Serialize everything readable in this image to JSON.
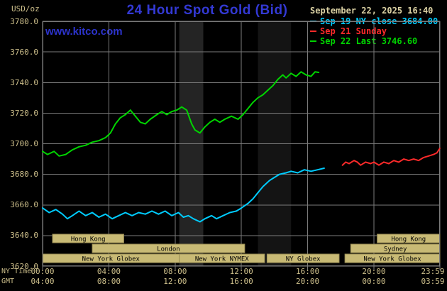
{
  "header": {
    "unit_label": "USD/oz",
    "title": "24 Hour Spot Gold (Bid)",
    "watermark": "www.kitco.com",
    "timestamp": "September 22, 2025 16:40"
  },
  "colors": {
    "background": "#000000",
    "grid": "#7b7b7b",
    "axis_text": "#cdbf8b",
    "title_blue": "#3339d4",
    "watermark_blue": "#2c33cc",
    "timestamp_text": "#dcd2a4",
    "session_fill": "#c8ba75",
    "session_border": "#9b8f55",
    "session_text": "#000000"
  },
  "chart_data": {
    "type": "line",
    "title": "24 Hour Spot Gold (Bid)",
    "ylabel": "USD/oz",
    "ylim": [
      3620,
      3780
    ],
    "x_range_hours": [
      0,
      23.983
    ],
    "grid": true,
    "legend_position": "top-right",
    "x_axis_rows": {
      "ny": "NY Time",
      "gmt": "GMT"
    },
    "y_ticks": [
      {
        "value": 3780,
        "label": "3780.0"
      },
      {
        "value": 3760,
        "label": "3760.0"
      },
      {
        "value": 3740,
        "label": "3740.0"
      },
      {
        "value": 3720,
        "label": "3720.0"
      },
      {
        "value": 3700,
        "label": "3700.0"
      },
      {
        "value": 3680,
        "label": "3680.0"
      },
      {
        "value": 3660,
        "label": "3660.0"
      },
      {
        "value": 3640,
        "label": "3640.0"
      },
      {
        "value": 3620,
        "label": "3620.0"
      }
    ],
    "x_ticks": [
      {
        "hour": 0,
        "ny": "00:00",
        "gmt": "04:00"
      },
      {
        "hour": 4,
        "ny": "04:00",
        "gmt": "08:00"
      },
      {
        "hour": 8,
        "ny": "08:00",
        "gmt": "12:00"
      },
      {
        "hour": 12,
        "ny": "12:00",
        "gmt": "16:00"
      },
      {
        "hour": 16,
        "ny": "16:00",
        "gmt": "20:00"
      },
      {
        "hour": 20,
        "ny": "20:00",
        "gmt": "00:00"
      },
      {
        "hour": 23.983,
        "ny": "23:59",
        "gmt": "03:59"
      }
    ],
    "shaded_bands": [
      {
        "start_hour": 8.25,
        "end_hour": 9.7,
        "color": "#242424"
      },
      {
        "start_hour": 13.0,
        "end_hour": 15.0,
        "color": "#141414"
      }
    ],
    "series": [
      {
        "name": "Sep 19 NY close 3684.00",
        "color": "#00ccff",
        "points": [
          [
            0,
            3658
          ],
          [
            0.4,
            3655
          ],
          [
            0.8,
            3657
          ],
          [
            1.2,
            3654
          ],
          [
            1.5,
            3651
          ],
          [
            1.8,
            3653
          ],
          [
            2.2,
            3656
          ],
          [
            2.6,
            3653
          ],
          [
            3,
            3655
          ],
          [
            3.4,
            3652
          ],
          [
            3.8,
            3654
          ],
          [
            4.2,
            3651
          ],
          [
            4.6,
            3653
          ],
          [
            5,
            3655
          ],
          [
            5.4,
            3653
          ],
          [
            5.8,
            3655
          ],
          [
            6.2,
            3654
          ],
          [
            6.6,
            3656
          ],
          [
            7,
            3654
          ],
          [
            7.4,
            3656
          ],
          [
            7.8,
            3653
          ],
          [
            8.2,
            3655
          ],
          [
            8.5,
            3652
          ],
          [
            8.8,
            3653
          ],
          [
            9.1,
            3651
          ],
          [
            9.5,
            3649
          ],
          [
            9.8,
            3651
          ],
          [
            10.2,
            3653
          ],
          [
            10.5,
            3651
          ],
          [
            10.9,
            3653
          ],
          [
            11.3,
            3655
          ],
          [
            11.7,
            3656
          ],
          [
            12,
            3658
          ],
          [
            12.4,
            3661
          ],
          [
            12.7,
            3664
          ],
          [
            13,
            3668
          ],
          [
            13.3,
            3672
          ],
          [
            13.7,
            3676
          ],
          [
            14,
            3678
          ],
          [
            14.3,
            3680
          ],
          [
            14.7,
            3681
          ],
          [
            15,
            3682
          ],
          [
            15.4,
            3681
          ],
          [
            15.8,
            3683
          ],
          [
            16.2,
            3682
          ],
          [
            16.6,
            3683
          ],
          [
            17,
            3684
          ]
        ]
      },
      {
        "name": "Sep 21 Sunday",
        "color": "#ff2a2a",
        "points": [
          [
            18.1,
            3686
          ],
          [
            18.3,
            3688
          ],
          [
            18.5,
            3687
          ],
          [
            18.8,
            3689
          ],
          [
            19,
            3688
          ],
          [
            19.2,
            3686
          ],
          [
            19.5,
            3688
          ],
          [
            19.8,
            3687
          ],
          [
            20,
            3688
          ],
          [
            20.3,
            3686
          ],
          [
            20.6,
            3688
          ],
          [
            20.9,
            3687
          ],
          [
            21.2,
            3689
          ],
          [
            21.5,
            3688
          ],
          [
            21.8,
            3690
          ],
          [
            22.1,
            3689
          ],
          [
            22.4,
            3690
          ],
          [
            22.7,
            3689
          ],
          [
            23,
            3691
          ],
          [
            23.3,
            3692
          ],
          [
            23.6,
            3693
          ],
          [
            23.8,
            3694
          ],
          [
            23.98,
            3697
          ]
        ]
      },
      {
        "name": "Sep 22 Last 3746.60",
        "color": "#00d400",
        "points": [
          [
            0,
            3695
          ],
          [
            0.3,
            3693
          ],
          [
            0.7,
            3695
          ],
          [
            1,
            3692
          ],
          [
            1.4,
            3693
          ],
          [
            1.8,
            3696
          ],
          [
            2.2,
            3698
          ],
          [
            2.6,
            3699
          ],
          [
            3,
            3701
          ],
          [
            3.4,
            3702
          ],
          [
            3.8,
            3704
          ],
          [
            4.1,
            3707
          ],
          [
            4.4,
            3713
          ],
          [
            4.7,
            3717
          ],
          [
            5,
            3719
          ],
          [
            5.3,
            3722
          ],
          [
            5.6,
            3718
          ],
          [
            5.9,
            3714
          ],
          [
            6.2,
            3713
          ],
          [
            6.5,
            3716
          ],
          [
            6.9,
            3719
          ],
          [
            7.2,
            3721
          ],
          [
            7.5,
            3719
          ],
          [
            7.8,
            3721
          ],
          [
            8.1,
            3722
          ],
          [
            8.4,
            3724
          ],
          [
            8.7,
            3722
          ],
          [
            9,
            3713
          ],
          [
            9.2,
            3709
          ],
          [
            9.5,
            3707
          ],
          [
            9.8,
            3711
          ],
          [
            10.1,
            3714
          ],
          [
            10.4,
            3716
          ],
          [
            10.7,
            3714
          ],
          [
            11,
            3716
          ],
          [
            11.4,
            3718
          ],
          [
            11.8,
            3716
          ],
          [
            12.1,
            3719
          ],
          [
            12.4,
            3723
          ],
          [
            12.7,
            3727
          ],
          [
            13,
            3730
          ],
          [
            13.3,
            3732
          ],
          [
            13.6,
            3735
          ],
          [
            13.9,
            3738
          ],
          [
            14.2,
            3742
          ],
          [
            14.5,
            3745
          ],
          [
            14.7,
            3743
          ],
          [
            15,
            3746
          ],
          [
            15.3,
            3744
          ],
          [
            15.6,
            3747
          ],
          [
            15.9,
            3745
          ],
          [
            16.2,
            3744
          ],
          [
            16.45,
            3747
          ],
          [
            16.67,
            3746.6
          ]
        ]
      }
    ],
    "sessions": [
      {
        "row": 0,
        "label": "Hong Kong",
        "start_hour": 0.6,
        "end_hour": 4.9
      },
      {
        "row": 0,
        "label": "Hong Kong",
        "start_hour": 20.2,
        "end_hour": 23.983
      },
      {
        "row": 1,
        "label": "London",
        "start_hour": 3.0,
        "end_hour": 12.2
      },
      {
        "row": 1,
        "label": "Sydney",
        "start_hour": 18.6,
        "end_hour": 23.983
      },
      {
        "row": 2,
        "label": "New York Globex",
        "start_hour": 0.0,
        "end_hour": 8.25
      },
      {
        "row": 2,
        "label": "New York NYMEX",
        "start_hour": 8.25,
        "end_hour": 13.4
      },
      {
        "row": 2,
        "label": "NY Globex",
        "start_hour": 13.55,
        "end_hour": 17.9
      },
      {
        "row": 2,
        "label": "New York Globex",
        "start_hour": 18.25,
        "end_hour": 23.983
      }
    ]
  }
}
